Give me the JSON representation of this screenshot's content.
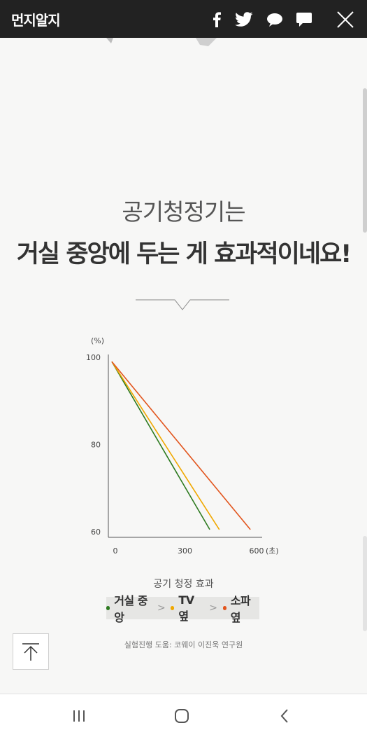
{
  "header": {
    "logo": "먼지알지",
    "icons": [
      "facebook-icon",
      "twitter-icon",
      "kakaostory-icon",
      "kakaotalk-icon",
      "close-icon"
    ]
  },
  "content": {
    "headline_line1": "공기청정기는",
    "headline_line2": "거실 중앙에 두는 게 효과적이네요!",
    "caption": "공기 청정 효과",
    "credit": "실험진행 도움: 코웨이 이진욱 연구원",
    "legend_separator": ">"
  },
  "chart_data": {
    "type": "line",
    "title": "",
    "ylabel": "(%)",
    "xlabel": "(초)",
    "x_ticks": [
      "0",
      "300",
      "600"
    ],
    "y_ticks": [
      "100",
      "80",
      "60"
    ],
    "xlim": [
      0,
      600
    ],
    "ylim": [
      60,
      100
    ],
    "series": [
      {
        "name": "거실 중앙",
        "color": "#2d7a1f",
        "x": [
          0,
          410
        ],
        "y": [
          99,
          60.5
        ]
      },
      {
        "name": "TV 옆",
        "color": "#f0a800",
        "x": [
          0,
          450
        ],
        "y": [
          99,
          60.5
        ]
      },
      {
        "name": "소파 옆",
        "color": "#e2541c",
        "x": [
          0,
          580
        ],
        "y": [
          99,
          60.5
        ]
      }
    ]
  },
  "nav": {
    "icons": [
      "recent-apps-icon",
      "home-icon",
      "back-icon"
    ]
  }
}
